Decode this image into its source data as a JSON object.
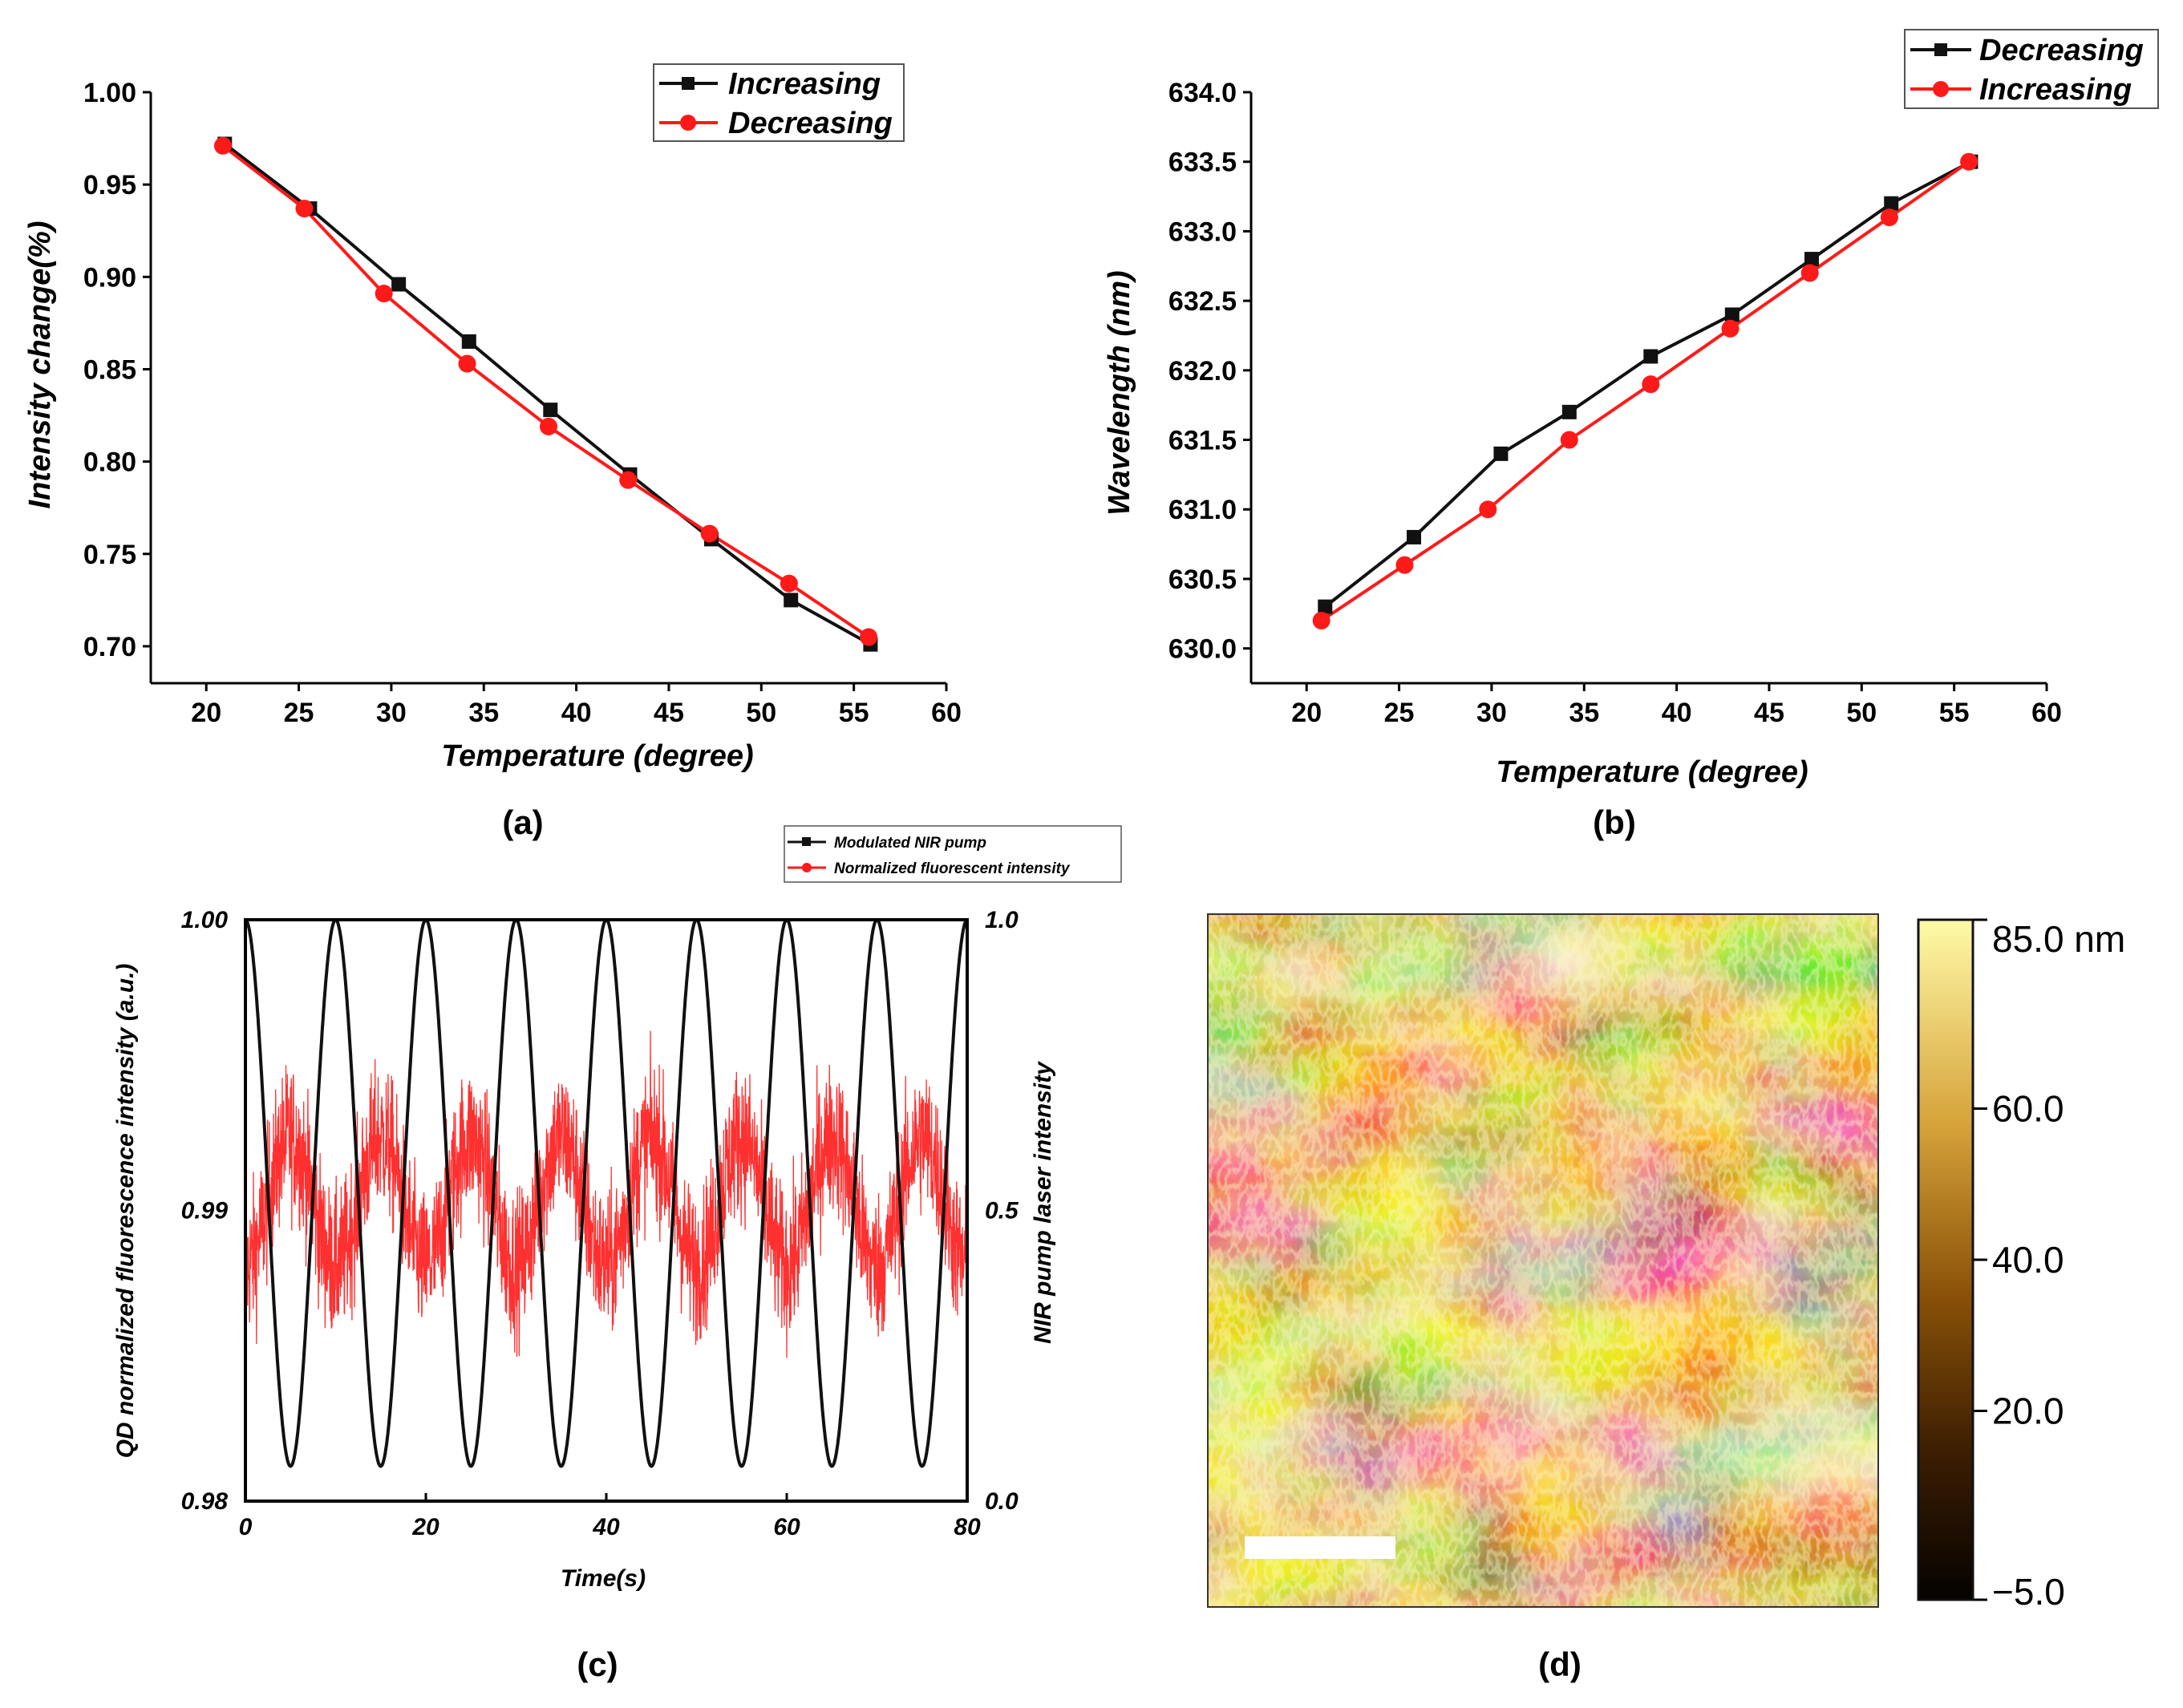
{
  "colors": {
    "black_series": "#111111",
    "red_series": "#ff1a1a"
  },
  "chart_data": [
    {
      "panel": "(a)",
      "type": "line",
      "xlabel": "Temperature (degree)",
      "ylabel": "Intensity change(%)",
      "xlim": [
        17,
        60
      ],
      "ylim": [
        0.68,
        1.0
      ],
      "xticks": [
        "20",
        "25",
        "30",
        "35",
        "40",
        "45",
        "50",
        "55",
        "60"
      ],
      "yticks": [
        "0.70",
        "0.75",
        "0.80",
        "0.85",
        "0.90",
        "0.95",
        "1.00"
      ],
      "legend_position": "top-right",
      "series": [
        {
          "name": "Increasing",
          "marker": "square",
          "color": "#111111",
          "x": [
            21,
            25.6,
            30.4,
            34.2,
            38.6,
            42.9,
            47.3,
            51.6,
            55.9
          ],
          "y": [
            0.972,
            0.937,
            0.896,
            0.865,
            0.828,
            0.793,
            0.758,
            0.725,
            0.701
          ]
        },
        {
          "name": "Decreasing",
          "marker": "circle",
          "color": "#ff1a1a",
          "x": [
            20.9,
            25.3,
            29.6,
            34.1,
            38.5,
            42.8,
            47.2,
            51.5,
            55.8
          ],
          "y": [
            0.971,
            0.937,
            0.891,
            0.853,
            0.819,
            0.79,
            0.761,
            0.734,
            0.705
          ]
        }
      ]
    },
    {
      "panel": "(b)",
      "type": "line",
      "xlabel": "Temperature (degree)",
      "ylabel": "Wavelength (nm)",
      "xlim": [
        17,
        60
      ],
      "ylim": [
        629.75,
        634.0
      ],
      "xticks": [
        "20",
        "25",
        "30",
        "35",
        "40",
        "45",
        "50",
        "55",
        "60"
      ],
      "yticks": [
        "630.0",
        "630.5",
        "631.0",
        "631.5",
        "632.0",
        "632.5",
        "633.0",
        "633.5",
        "634.0"
      ],
      "legend_position": "top-right",
      "series": [
        {
          "name": "Decreasing",
          "marker": "square",
          "color": "#111111",
          "x": [
            21,
            25.8,
            30.5,
            34.2,
            38.6,
            43,
            47.3,
            51.6,
            55.9
          ],
          "y": [
            630.3,
            630.8,
            631.4,
            631.7,
            632.1,
            632.4,
            632.8,
            633.2,
            633.5
          ]
        },
        {
          "name": "Increasing",
          "marker": "circle",
          "color": "#ff1a1a",
          "x": [
            20.8,
            25.3,
            29.8,
            34.2,
            38.6,
            42.9,
            47.2,
            51.5,
            55.8
          ],
          "y": [
            630.2,
            630.6,
            631.0,
            631.5,
            631.9,
            632.3,
            632.7,
            633.1,
            633.5
          ]
        }
      ]
    },
    {
      "panel": "(c)",
      "type": "line",
      "xlabel": "Time(s)",
      "ylabel": "QD normalized fluorescence intensity (a.u.)",
      "ylabel_right": "NIR pump laser intensity",
      "xlim": [
        0,
        80
      ],
      "ylim": [
        0.98,
        1.0
      ],
      "ylim_right": [
        0.0,
        1.0
      ],
      "xticks": [
        "0",
        "20",
        "40",
        "60",
        "80"
      ],
      "yticks": [
        "0.98",
        "0.99",
        "1.00"
      ],
      "yticks_right": [
        "0.0",
        "0.5",
        "1.0"
      ],
      "legend_position": "top-right",
      "series": [
        {
          "name": "Modulated NIR pump",
          "color": "#111111",
          "axis": "right",
          "period_s": 10,
          "min": 0.06,
          "max": 1.0,
          "peak_times_s": [
            0,
            10,
            20,
            30,
            40,
            50,
            60,
            70,
            80
          ]
        },
        {
          "name": "Normalized fluorescent intensity",
          "color": "#ff1a1a",
          "axis": "left",
          "period_s": 10,
          "mean": 0.9903,
          "amplitude": 0.0022,
          "noise": 0.0025
        }
      ]
    },
    {
      "panel": "(d)",
      "type": "heatmap",
      "colorbar_ticks": [
        "85.0 nm",
        "60.0",
        "40.0",
        "20.0",
        "−5.0"
      ],
      "colorbar_range": [
        -5.0,
        85.0
      ]
    }
  ]
}
